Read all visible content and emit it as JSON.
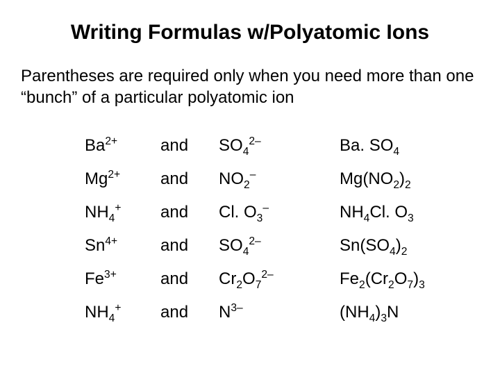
{
  "colors": {
    "text": "#000000",
    "background": "#ffffff"
  },
  "typography": {
    "title_fontsize": 30,
    "title_weight": "bold",
    "body_fontsize": 24,
    "font_family": "Arial"
  },
  "title": "Writing Formulas w/Polyatomic Ions",
  "subtitle": "Parentheses are required only when you need more than one “bunch” of a particular polyatomic ion",
  "conjunction": "and",
  "rows": [
    {
      "cation_base": "Ba",
      "cation_sup": "2+",
      "anion_base": "SO",
      "anion_sub": "4",
      "anion_sup": "2–",
      "result_html": "Ba. SO<sub>4</sub>"
    },
    {
      "cation_base": "Mg",
      "cation_sup": "2+",
      "anion_base": "NO",
      "anion_sub": "2",
      "anion_sup": "–",
      "result_html": "Mg(NO<sub>2</sub>)<sub>2</sub>"
    },
    {
      "cation_base": "NH",
      "cation_sub": "4",
      "cation_sup": "+",
      "anion_base": "Cl. O",
      "anion_sub": "3",
      "anion_sup": "–",
      "result_html": "NH<sub>4</sub>Cl. O<sub>3</sub>"
    },
    {
      "cation_base": "Sn",
      "cation_sup": "4+",
      "anion_base": "SO",
      "anion_sub": "4",
      "anion_sup": "2–",
      "result_html": "Sn(SO<sub>4</sub>)<sub>2</sub>"
    },
    {
      "cation_base": "Fe",
      "cation_sup": "3+",
      "anion_base": "Cr",
      "anion_mid": "2",
      "anion_base2": "O",
      "anion_sub": "7",
      "anion_sup": "2–",
      "result_html": "Fe<sub>2</sub>(Cr<sub>2</sub>O<sub>7</sub>)<sub>3</sub>"
    },
    {
      "cation_base": "NH",
      "cation_sub": "4",
      "cation_sup": "+",
      "anion_base": "N",
      "anion_sup": "3–",
      "result_html": "(NH<sub>4</sub>)<sub>3</sub>N"
    }
  ]
}
